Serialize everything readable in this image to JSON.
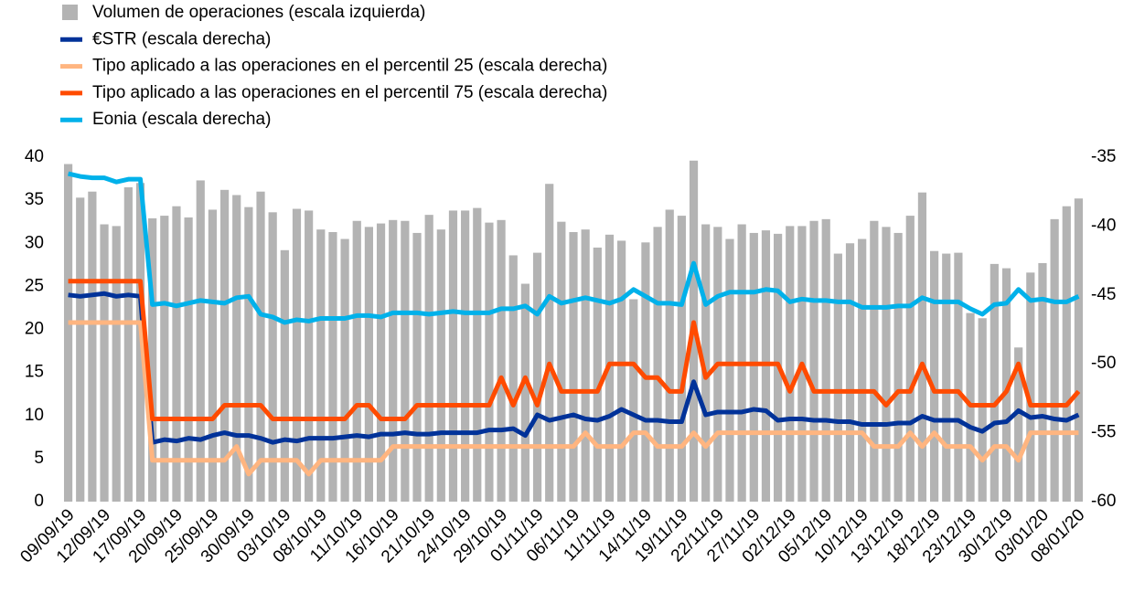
{
  "chart_data": {
    "type": "bar",
    "categories": [
      "09/09/19",
      null,
      null,
      "12/09/19",
      null,
      null,
      "17/09/19",
      null,
      null,
      "20/09/19",
      null,
      null,
      "25/09/19",
      null,
      null,
      "30/09/19",
      null,
      null,
      "03/10/19",
      null,
      null,
      "08/10/19",
      null,
      null,
      "11/10/19",
      null,
      null,
      "16/10/19",
      null,
      null,
      "21/10/19",
      null,
      null,
      "24/10/19",
      null,
      null,
      "29/10/19",
      null,
      null,
      "01/11/19",
      null,
      null,
      "06/11/19",
      null,
      null,
      "11/11/19",
      null,
      null,
      "14/11/19",
      null,
      null,
      "19/11/19",
      null,
      null,
      "22/11/19",
      null,
      null,
      "27/11/19",
      null,
      null,
      "02/12/19",
      null,
      null,
      "05/12/19",
      null,
      null,
      "10/12/19",
      null,
      null,
      "13/12/19",
      null,
      null,
      "18/12/19",
      null,
      null,
      "23/12/19",
      null,
      null,
      "30/12/19",
      null,
      null,
      "03/01/20",
      null,
      null,
      "08/01/20"
    ],
    "series": [
      {
        "name": "Volumen de operaciones (escala izquierda)",
        "type": "bar",
        "color": "#b3b3b3",
        "values": [
          39.2,
          35.3,
          36,
          32.2,
          32,
          36.5,
          37,
          32.9,
          33.2,
          34.3,
          33,
          37.3,
          33.9,
          36.2,
          35.6,
          34.2,
          36,
          33.6,
          29.2,
          34,
          33.8,
          31.6,
          31.3,
          30.5,
          32.6,
          31.9,
          32.3,
          32.7,
          32.6,
          31.2,
          33.3,
          31.6,
          33.8,
          33.8,
          34.1,
          32.4,
          32.7,
          28.6,
          25.3,
          28.9,
          36.9,
          32.5,
          31.3,
          31.6,
          29.5,
          31,
          30.3,
          23.5,
          30.1,
          31.9,
          33.9,
          33.2,
          39.6,
          32.2,
          31.9,
          30.5,
          32.2,
          31.2,
          31.5,
          31.1,
          32,
          32,
          32.6,
          32.8,
          28.8,
          30,
          30.5,
          32.6,
          31.9,
          31.2,
          33.2,
          35.9,
          29.1,
          28.8,
          28.9,
          21.9,
          21.3,
          27.6,
          27.1,
          17.9,
          26.6,
          27.7,
          32.8,
          34.3,
          35.2
        ]
      },
      {
        "name": "€STR (escala derecha)",
        "type": "line",
        "axis": "y2",
        "color": "#003299",
        "values": [
          -45,
          -45.1,
          -45,
          -44.9,
          -45.1,
          -45,
          -45.1,
          -55.7,
          -55.5,
          -55.6,
          -55.4,
          -55.5,
          -55.2,
          -55,
          -55.2,
          -55.2,
          -55.4,
          -55.7,
          -55.5,
          -55.6,
          -55.4,
          -55.4,
          -55.4,
          -55.3,
          -55.2,
          -55.3,
          -55.1,
          -55.1,
          -55,
          -55.1,
          -55.1,
          -55,
          -55,
          -55,
          -55,
          -54.8,
          -54.8,
          -54.7,
          -55.2,
          -53.7,
          -54.1,
          -53.9,
          -53.7,
          -54,
          -54.1,
          -53.8,
          -53.3,
          -53.7,
          -54.1,
          -54.1,
          -54.2,
          -54.2,
          -51.3,
          -53.7,
          -53.5,
          -53.5,
          -53.5,
          -53.3,
          -53.4,
          -54.1,
          -54,
          -54,
          -54.1,
          -54.1,
          -54.2,
          -54.2,
          -54.4,
          -54.4,
          -54.4,
          -54.3,
          -54.3,
          -53.8,
          -54.1,
          -54.1,
          -54.1,
          -54.6,
          -54.9,
          -54.3,
          -54.2,
          -53.4,
          -53.9,
          -53.8,
          -54,
          -54.1,
          -53.7
        ]
      },
      {
        "name": "Tipo aplicado a las operaciones en el percentil 25 (escala derecha)",
        "type": "line",
        "axis": "y2",
        "color": "#ffb580",
        "values": [
          -47,
          -47,
          -47,
          -47,
          -47,
          -47,
          -47,
          -57,
          -57,
          -57,
          -57,
          -57,
          -57,
          -57,
          -56,
          -58,
          -57,
          -57,
          -57,
          -57,
          -58,
          -57,
          -57,
          -57,
          -57,
          -57,
          -57,
          -56,
          -56,
          -56,
          -56,
          -56,
          -56,
          -56,
          -56,
          -56,
          -56,
          -56,
          -56,
          -56,
          -56,
          -56,
          -56,
          -55,
          -56,
          -56,
          -56,
          -55,
          -55,
          -56,
          -56,
          -56,
          -55,
          -56,
          -55,
          -55,
          -55,
          -55,
          -55,
          -55,
          -55,
          -55,
          -55,
          -55,
          -55,
          -55,
          -55,
          -56,
          -56,
          -56,
          -55,
          -56,
          -55,
          -56,
          -56,
          -56,
          -57,
          -56,
          -56,
          -57,
          -55,
          -55,
          -55,
          -55,
          -55
        ]
      },
      {
        "name": "Tipo aplicado a las operaciones en el percentil 75 (escala derecha)",
        "type": "line",
        "axis": "y2",
        "color": "#ff4b00",
        "values": [
          -44,
          -44,
          -44,
          -44,
          -44,
          -44,
          -44,
          -54,
          -54,
          -54,
          -54,
          -54,
          -54,
          -53,
          -53,
          -53,
          -53,
          -54,
          -54,
          -54,
          -54,
          -54,
          -54,
          -54,
          -53,
          -53,
          -54,
          -54,
          -54,
          -53,
          -53,
          -53,
          -53,
          -53,
          -53,
          -53,
          -51,
          -53,
          -51,
          -53,
          -50,
          -52,
          -52,
          -52,
          -52,
          -50,
          -50,
          -50,
          -51,
          -51,
          -52,
          -52,
          -47,
          -51,
          -50,
          -50,
          -50,
          -50,
          -50,
          -50,
          -52,
          -50,
          -52,
          -52,
          -52,
          -52,
          -52,
          -52,
          -53,
          -52,
          -52,
          -50,
          -52,
          -52,
          -52,
          -53,
          -53,
          -53,
          -52,
          -50,
          -53,
          -53,
          -53,
          -53,
          -52
        ]
      },
      {
        "name": "Eonia (escala derecha)",
        "type": "line",
        "axis": "y2",
        "color": "#00b1ea",
        "values": [
          -36.2,
          -36.4,
          -36.5,
          -36.5,
          -36.8,
          -36.6,
          -36.6,
          -45.7,
          -45.6,
          -45.8,
          -45.6,
          -45.4,
          -45.5,
          -45.6,
          -45.2,
          -45.1,
          -46.4,
          -46.6,
          -47,
          -46.8,
          -46.9,
          -46.7,
          -46.7,
          -46.7,
          -46.5,
          -46.5,
          -46.6,
          -46.3,
          -46.3,
          -46.3,
          -46.4,
          -46.3,
          -46.2,
          -46.3,
          -46.3,
          -46.3,
          -46,
          -46,
          -45.8,
          -46.4,
          -45.1,
          -45.6,
          -45.4,
          -45.2,
          -45.4,
          -45.6,
          -45.3,
          -44.6,
          -45.1,
          -45.6,
          -45.6,
          -45.7,
          -42.7,
          -45.7,
          -45.1,
          -44.8,
          -44.8,
          -44.8,
          -44.6,
          -44.7,
          -45.5,
          -45.3,
          -45.4,
          -45.4,
          -45.5,
          -45.5,
          -45.9,
          -45.9,
          -45.9,
          -45.8,
          -45.8,
          -45.2,
          -45.5,
          -45.5,
          -45.5,
          -46,
          -46.4,
          -45.7,
          -45.6,
          -44.6,
          -45.4,
          -45.3,
          -45.5,
          -45.5,
          -45.1
        ]
      }
    ],
    "ylim": [
      0,
      40
    ],
    "yticks": [
      0,
      5,
      10,
      15,
      20,
      25,
      30,
      35,
      40
    ],
    "y2lim": [
      -60,
      -35
    ],
    "y2ticks": [
      -60,
      -55,
      -50,
      -45,
      -40,
      -35
    ],
    "legend": "top-left"
  }
}
